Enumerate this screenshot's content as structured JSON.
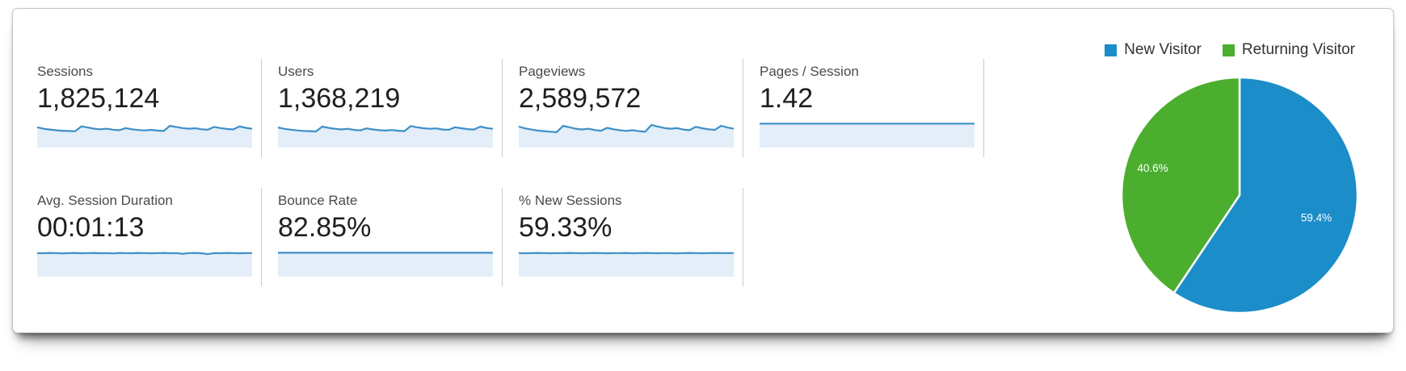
{
  "metrics": [
    {
      "label": "Sessions",
      "value": "1,825,124"
    },
    {
      "label": "Users",
      "value": "1,368,219"
    },
    {
      "label": "Pageviews",
      "value": "2,589,572"
    },
    {
      "label": "Pages / Session",
      "value": "1.42"
    },
    {
      "label": "Avg. Session Duration",
      "value": "00:01:13"
    },
    {
      "label": "Bounce Rate",
      "value": "82.85%"
    },
    {
      "label": "% New Sessions",
      "value": "59.33%"
    }
  ],
  "legend": {
    "items": [
      {
        "label": "New Visitor",
        "color": "#1b8dc9"
      },
      {
        "label": "Returning Visitor",
        "color": "#4cae2e"
      }
    ]
  },
  "colors": {
    "spark_line": "#3e8fc7",
    "spark_fill": "#e3eef8",
    "pie_blue": "#1b8dc9",
    "pie_green": "#4cae2e",
    "divider": "#cccccc"
  },
  "chart_data": [
    {
      "type": "area",
      "id": "sessions",
      "title": "Sessions",
      "value_text": "1,825,124",
      "points": [
        0.68,
        0.58,
        0.52,
        0.47,
        0.44,
        0.42,
        0.4,
        0.74,
        0.66,
        0.58,
        0.54,
        0.58,
        0.51,
        0.47,
        0.62,
        0.54,
        0.49,
        0.46,
        0.5,
        0.45,
        0.42,
        0.78,
        0.7,
        0.62,
        0.58,
        0.61,
        0.54,
        0.51,
        0.7,
        0.62,
        0.56,
        0.53,
        0.74,
        0.64,
        0.58
      ]
    },
    {
      "type": "area",
      "id": "users",
      "title": "Users",
      "value_text": "1,368,219",
      "points": [
        0.66,
        0.57,
        0.51,
        0.46,
        0.43,
        0.41,
        0.39,
        0.72,
        0.64,
        0.57,
        0.53,
        0.57,
        0.5,
        0.46,
        0.6,
        0.53,
        0.48,
        0.45,
        0.49,
        0.44,
        0.41,
        0.76,
        0.68,
        0.61,
        0.57,
        0.6,
        0.53,
        0.5,
        0.68,
        0.61,
        0.55,
        0.52,
        0.72,
        0.63,
        0.57
      ]
    },
    {
      "type": "area",
      "id": "pageviews",
      "title": "Pageviews",
      "value_text": "2,589,572",
      "points": [
        0.72,
        0.6,
        0.52,
        0.45,
        0.41,
        0.37,
        0.34,
        0.78,
        0.68,
        0.58,
        0.53,
        0.58,
        0.49,
        0.44,
        0.64,
        0.54,
        0.47,
        0.43,
        0.48,
        0.41,
        0.37,
        0.84,
        0.73,
        0.63,
        0.58,
        0.62,
        0.52,
        0.48,
        0.71,
        0.61,
        0.54,
        0.5,
        0.78,
        0.66,
        0.58
      ]
    },
    {
      "type": "area",
      "id": "pages-session",
      "title": "Pages / Session",
      "value_text": "1.42",
      "points": [
        0.93,
        0.93,
        0.93,
        0.93,
        0.93,
        0.93,
        0.93,
        0.93,
        0.93,
        0.93,
        0.93,
        0.93,
        0.93,
        0.93,
        0.93,
        0.93,
        0.93,
        0.93,
        0.93,
        0.93,
        0.93,
        0.93,
        0.93,
        0.93,
        0.93,
        0.93,
        0.93,
        0.93,
        0.93,
        0.93,
        0.93,
        0.93,
        0.93,
        0.93,
        0.93
      ]
    },
    {
      "type": "area",
      "id": "avg-duration",
      "title": "Avg. Session Duration",
      "value_text": "00:01:13",
      "points": [
        0.9,
        0.89,
        0.91,
        0.9,
        0.88,
        0.9,
        0.91,
        0.89,
        0.9,
        0.91,
        0.89,
        0.9,
        0.88,
        0.91,
        0.9,
        0.89,
        0.91,
        0.9,
        0.89,
        0.9,
        0.91,
        0.89,
        0.9,
        0.85,
        0.9,
        0.91,
        0.89,
        0.83,
        0.9,
        0.89,
        0.91,
        0.9,
        0.89,
        0.9,
        0.9
      ]
    },
    {
      "type": "area",
      "id": "bounce-rate",
      "title": "Bounce Rate",
      "value_text": "82.85%",
      "points": [
        0.92,
        0.92,
        0.93,
        0.92,
        0.92,
        0.92,
        0.93,
        0.92,
        0.92,
        0.92,
        0.92,
        0.93,
        0.92,
        0.92,
        0.92,
        0.93,
        0.92,
        0.92,
        0.92,
        0.92,
        0.93,
        0.92,
        0.92,
        0.92,
        0.93,
        0.92,
        0.92,
        0.92,
        0.92,
        0.93,
        0.92,
        0.92,
        0.92,
        0.92,
        0.92
      ]
    },
    {
      "type": "area",
      "id": "new-sessions",
      "title": "% New Sessions",
      "value_text": "59.33%",
      "points": [
        0.9,
        0.89,
        0.9,
        0.91,
        0.9,
        0.89,
        0.9,
        0.9,
        0.91,
        0.9,
        0.89,
        0.9,
        0.91,
        0.9,
        0.89,
        0.9,
        0.9,
        0.91,
        0.89,
        0.9,
        0.91,
        0.9,
        0.89,
        0.9,
        0.9,
        0.88,
        0.9,
        0.91,
        0.9,
        0.89,
        0.9,
        0.91,
        0.9,
        0.9,
        0.9
      ]
    },
    {
      "type": "pie",
      "id": "visitor-type",
      "start_angle_deg": 0,
      "direction": "clockwise",
      "legend_position": "top-right",
      "slices": [
        {
          "label": "New Visitor",
          "pct": 59.4,
          "label_text": "59.4%",
          "color": "#1b8dc9",
          "label_r": 0.68
        },
        {
          "label": "Returning Visitor",
          "pct": 40.6,
          "label_text": "40.6%",
          "color": "#4cae2e",
          "label_r": 0.77
        }
      ]
    }
  ]
}
